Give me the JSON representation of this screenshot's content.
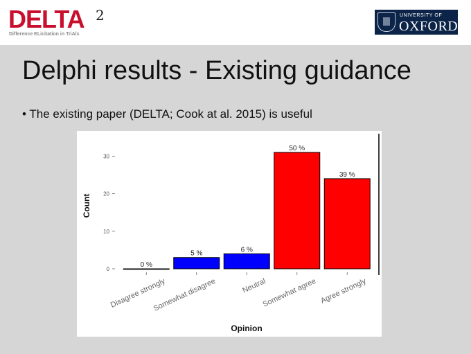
{
  "header": {
    "logo_text": "DELTA",
    "logo_superscript": "2",
    "logo_tagline": "Difference ELicitation in TriAls",
    "partner_logo_top": "UNIVERSITY OF",
    "partner_logo_name": "OXFORD"
  },
  "slide": {
    "title": "Delphi results - Existing guidance",
    "bullet_marker": "•",
    "bullet": "The existing paper (DELTA; Cook at al. 2015) is useful"
  },
  "colors": {
    "brand": "#c8102e",
    "oxford_blue": "#0b2447",
    "negative": "#0000ff",
    "positive": "#ff0000"
  },
  "chart_data": {
    "type": "bar",
    "categories": [
      "Disagree strongly",
      "Somewhat disagree",
      "Neutral",
      "Somewhat agree",
      "Agree strongly"
    ],
    "values": [
      0,
      3,
      4,
      31,
      24
    ],
    "data_labels": [
      "0 %",
      "5 %",
      "6 %",
      "50 %",
      "39 %"
    ],
    "bar_colors": [
      "#0000ff",
      "#0000ff",
      "#0000ff",
      "#ff0000",
      "#ff0000"
    ],
    "xlabel": "Opinion",
    "ylabel": "Count",
    "yticks": [
      0,
      10,
      20,
      30
    ],
    "ylim": [
      0,
      31
    ],
    "grid": false,
    "legend": "none"
  }
}
